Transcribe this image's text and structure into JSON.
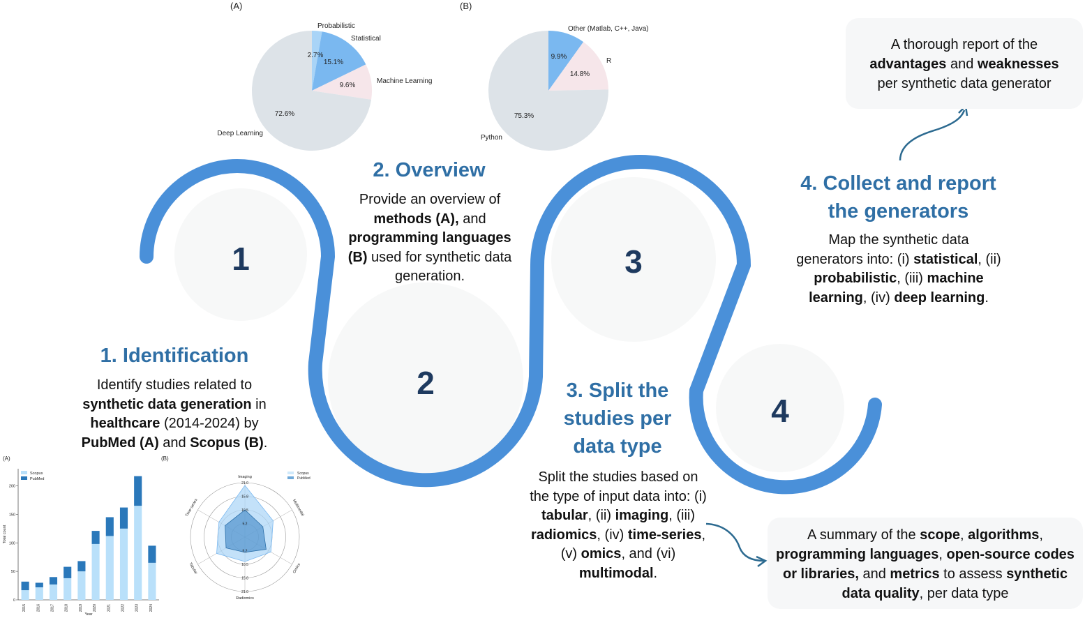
{
  "steps": [
    {
      "number": "1",
      "title": "1. Identification",
      "desc": [
        [
          "Identify studies related to",
          ""
        ],
        [
          "synthetic data generation",
          "b"
        ],
        [
          " in",
          ""
        ],
        [
          "healthcare",
          "b"
        ],
        [
          " (2014-2024) by",
          ""
        ],
        [
          "PubMed (A)",
          "b"
        ],
        [
          " and ",
          ""
        ],
        [
          "Scopus (B)",
          "b"
        ],
        [
          ".",
          ""
        ]
      ]
    },
    {
      "number": "2",
      "title": "2. Overview",
      "desc": [
        [
          "Provide an overview of",
          ""
        ],
        [
          "methods (A),",
          "b"
        ],
        [
          " and",
          ""
        ],
        [
          "programming languages",
          "b"
        ],
        [
          "(B)",
          "b"
        ],
        [
          " used for synthetic data generation.",
          ""
        ]
      ]
    },
    {
      "number": "3",
      "title_lines": [
        "3. Split the",
        "studies per",
        "data type"
      ],
      "desc": [
        [
          "Split the studies based on the type of input data into: (i) ",
          ""
        ],
        [
          "tabular",
          "b"
        ],
        [
          ", (ii) ",
          ""
        ],
        [
          "imaging",
          "b"
        ],
        [
          ", (iii) ",
          ""
        ],
        [
          "radiomics",
          "b"
        ],
        [
          ", (iv) ",
          ""
        ],
        [
          "time-series",
          "b"
        ],
        [
          ", (v) ",
          ""
        ],
        [
          "omics",
          "b"
        ],
        [
          ", and (vi) ",
          ""
        ],
        [
          "multimodal",
          "b"
        ],
        [
          ".",
          ""
        ]
      ]
    },
    {
      "number": "4",
      "title_lines": [
        "4. Collect and report",
        "the generators"
      ],
      "desc": [
        [
          "Map the synthetic data generators into: (i) ",
          ""
        ],
        [
          "statistical",
          "b"
        ],
        [
          ", (ii) ",
          ""
        ],
        [
          "probabilistic",
          "b"
        ],
        [
          ", (iii) ",
          ""
        ],
        [
          "machine learning",
          "b"
        ],
        [
          ", (iv) ",
          ""
        ],
        [
          "deep learning",
          "b"
        ],
        [
          ".",
          ""
        ]
      ]
    }
  ],
  "report_box": [
    [
      "A thorough report of the",
      ""
    ],
    [
      "advantages",
      "b"
    ],
    [
      " and ",
      ""
    ],
    [
      "weaknesses",
      "b"
    ],
    [
      "per synthetic data generator",
      ""
    ]
  ],
  "summary_box": [
    [
      "A summary of the ",
      ""
    ],
    [
      "scope",
      "b"
    ],
    [
      ", ",
      ""
    ],
    [
      "algorithms",
      "b"
    ],
    [
      ",",
      ""
    ],
    [
      "programming languages",
      "b"
    ],
    [
      ", ",
      ""
    ],
    [
      "open-source codes",
      "b"
    ],
    [
      "or libraries,",
      "b"
    ],
    [
      " and ",
      ""
    ],
    [
      "metrics",
      "b"
    ],
    [
      " to assess ",
      ""
    ],
    [
      "synthetic",
      "b"
    ],
    [
      "data quality",
      "b"
    ],
    [
      ", per data type",
      ""
    ]
  ],
  "colors": {
    "accent": "#4a90d9",
    "title": "#2f6fa5",
    "number": "#1e3a5f",
    "pie_grey": "#dde3e8",
    "pie_blue": "#7ab8f0",
    "pie_lightblue": "#a9d4f7",
    "pie_pink": "#f6e6ea"
  },
  "chart_data": [
    {
      "panel": "(A)",
      "type": "pie",
      "labels": [
        "Probabilistic",
        "Statistical",
        "Machine Learning",
        "Deep Learning"
      ],
      "values": [
        2.7,
        15.1,
        9.6,
        72.6
      ],
      "value_labels": [
        "2.7%",
        "15.1%",
        "9.6%",
        "72.6%"
      ]
    },
    {
      "panel": "(B)",
      "type": "pie",
      "labels": [
        "Other (Matlab, C++, Java)",
        "R",
        "Python"
      ],
      "values": [
        9.9,
        14.8,
        75.3
      ],
      "value_labels": [
        "9.9%",
        "14.8%",
        "75.3%"
      ]
    },
    {
      "panel": "(A)",
      "type": "bar",
      "legend": [
        "Scopus",
        "PubMed"
      ],
      "categories": [
        "2015",
        "2016",
        "2017",
        "2018",
        "2019",
        "2020",
        "2021",
        "2022",
        "2023",
        "2024"
      ],
      "series": [
        {
          "name": "Scopus",
          "values": [
            17,
            22,
            27,
            38,
            50,
            98,
            112,
            125,
            165,
            65
          ]
        },
        {
          "name": "PubMed",
          "values": [
            15,
            8,
            13,
            20,
            18,
            23,
            33,
            37,
            52,
            30
          ]
        }
      ],
      "yticks": [
        "0",
        "50",
        "100",
        "150",
        "200"
      ],
      "xlabel": "Year",
      "ylabel": "Total count",
      "ylim": [
        0,
        230
      ]
    },
    {
      "panel": "(B)",
      "type": "radar",
      "legend": [
        "Scopus",
        "PubMed"
      ],
      "axes": [
        "Imaging",
        "Multimodal",
        "Omics",
        "Radiomics",
        "Tabular",
        "Time-series"
      ],
      "rings": [
        "5.2",
        "10.5",
        "15.8",
        "21.0"
      ]
    }
  ]
}
